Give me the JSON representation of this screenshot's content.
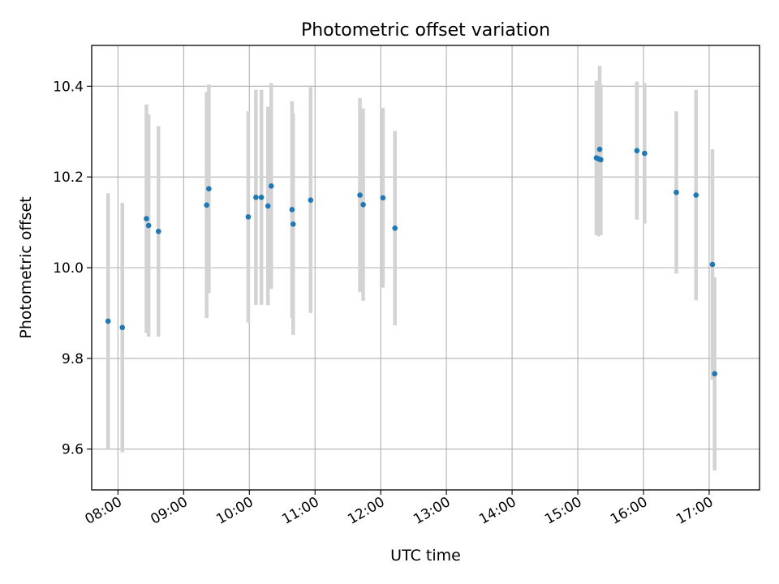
{
  "chart_data": {
    "type": "scatter",
    "title": "Photometric offset variation",
    "xlabel": "UTC time",
    "ylabel": "Photometric offset",
    "xlim": [
      "07:36",
      "17:46"
    ],
    "ylim": [
      9.51,
      10.49
    ],
    "x_ticks": [
      "08:00",
      "09:00",
      "10:00",
      "11:00",
      "12:00",
      "13:00",
      "14:00",
      "15:00",
      "16:00",
      "17:00"
    ],
    "y_ticks": [
      9.6,
      9.8,
      10.0,
      10.2,
      10.4
    ],
    "grid": true,
    "colors": {
      "point": "#1f77b4",
      "errorbar": "#d3d3d3",
      "grid": "#b0b0b0"
    },
    "points": [
      {
        "x": "07:51",
        "y": 9.882,
        "err": 0.282
      },
      {
        "x": "08:04",
        "y": 9.868,
        "err": 0.275
      },
      {
        "x": "08:26",
        "y": 10.108,
        "err": 0.252
      },
      {
        "x": "08:28",
        "y": 10.093,
        "err": 0.245
      },
      {
        "x": "08:37",
        "y": 10.08,
        "err": 0.232
      },
      {
        "x": "09:21",
        "y": 10.138,
        "err": 0.249
      },
      {
        "x": "09:23",
        "y": 10.174,
        "err": 0.23
      },
      {
        "x": "09:59",
        "y": 10.112,
        "err": 0.233
      },
      {
        "x": "10:06",
        "y": 10.155,
        "err": 0.237
      },
      {
        "x": "10:11",
        "y": 10.155,
        "err": 0.237
      },
      {
        "x": "10:17",
        "y": 10.136,
        "err": 0.219
      },
      {
        "x": "10:20",
        "y": 10.18,
        "err": 0.227
      },
      {
        "x": "10:39",
        "y": 10.128,
        "err": 0.239
      },
      {
        "x": "10:40",
        "y": 10.096,
        "err": 0.244
      },
      {
        "x": "10:56",
        "y": 10.149,
        "err": 0.249
      },
      {
        "x": "11:41",
        "y": 10.16,
        "err": 0.214
      },
      {
        "x": "11:44",
        "y": 10.139,
        "err": 0.212
      },
      {
        "x": "12:02",
        "y": 10.154,
        "err": 0.198
      },
      {
        "x": "12:13",
        "y": 10.087,
        "err": 0.214
      },
      {
        "x": "15:17",
        "y": 10.242,
        "err": 0.17
      },
      {
        "x": "15:19",
        "y": 10.24,
        "err": 0.171
      },
      {
        "x": "15:20",
        "y": 10.261,
        "err": 0.184
      },
      {
        "x": "15:21",
        "y": 10.238,
        "err": 0.166
      },
      {
        "x": "15:54",
        "y": 10.258,
        "err": 0.152
      },
      {
        "x": "16:01",
        "y": 10.252,
        "err": 0.155
      },
      {
        "x": "16:30",
        "y": 10.166,
        "err": 0.179
      },
      {
        "x": "16:48",
        "y": 10.16,
        "err": 0.232
      },
      {
        "x": "17:03",
        "y": 10.007,
        "err": 0.254
      },
      {
        "x": "17:05",
        "y": 9.766,
        "err": 0.213
      }
    ]
  }
}
